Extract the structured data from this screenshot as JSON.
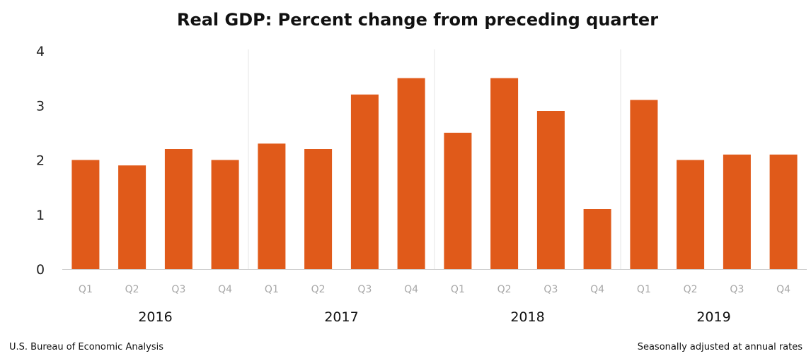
{
  "chart_data": {
    "type": "bar",
    "title": "Real GDP:  Percent change from preceding quarter",
    "categories": [
      "Q1",
      "Q2",
      "Q3",
      "Q4",
      "Q1",
      "Q2",
      "Q3",
      "Q4",
      "Q1",
      "Q2",
      "Q3",
      "Q4",
      "Q1",
      "Q2",
      "Q3",
      "Q4"
    ],
    "years": [
      "2016",
      "2017",
      "2018",
      "2019"
    ],
    "values": [
      2.0,
      1.9,
      2.2,
      2.0,
      2.3,
      2.2,
      3.2,
      3.5,
      2.5,
      3.5,
      2.9,
      1.1,
      3.1,
      2.0,
      2.1,
      2.1
    ],
    "yticks": [
      0,
      1,
      2,
      3,
      4
    ],
    "ylim": [
      0,
      4
    ],
    "xlabel": "",
    "ylabel": "",
    "grid": false,
    "bar_color": "#e05a1a"
  },
  "footer": {
    "source": "U.S. Bureau of Economic Analysis",
    "note": "Seasonally adjusted at annual rates"
  }
}
